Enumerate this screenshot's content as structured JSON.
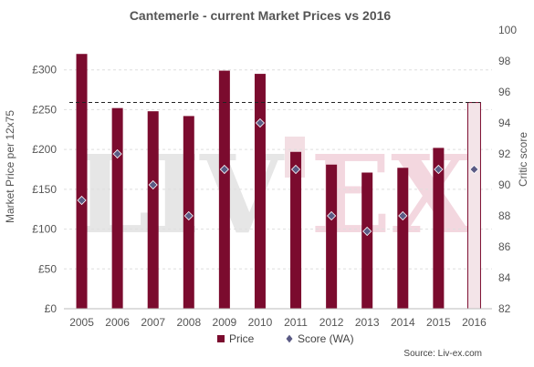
{
  "chart_data": {
    "type": "bar",
    "title": "Cantemerle - current Market Prices vs 2016",
    "ylabel": "Market Price per 12x75",
    "y2label": "Critic score",
    "categories": [
      "2005",
      "2006",
      "2007",
      "2008",
      "2009",
      "2010",
      "2011",
      "2012",
      "2013",
      "2014",
      "2015",
      "2016"
    ],
    "series": [
      {
        "name": "Price",
        "axis": "left",
        "values": [
          320,
          252,
          248,
          242,
          299,
          295,
          197,
          181,
          171,
          177,
          202,
          259
        ],
        "color": "#7b0b2e",
        "highlight_last": true,
        "highlight_color": "#f3e4e8"
      },
      {
        "name": "Score (WA)",
        "axis": "right",
        "values": [
          89,
          92,
          90,
          88,
          91,
          94,
          91,
          88,
          87,
          88,
          91,
          91
        ],
        "color": "#5a5a84",
        "marker": "diamond"
      }
    ],
    "ylim": [
      0,
      350
    ],
    "yticks": [
      "£0",
      "£50",
      "£100",
      "£150",
      "£200",
      "£250",
      "£300"
    ],
    "y2lim": [
      82,
      100
    ],
    "y2ticks": [
      "82",
      "84",
      "86",
      "88",
      "90",
      "92",
      "94",
      "96",
      "98",
      "100"
    ],
    "reference_line": {
      "value": 259,
      "style": "dashed"
    },
    "grid": true,
    "legend": "bottom-center",
    "watermark": "LIV-EX",
    "source": "Source: Liv-ex.com"
  }
}
